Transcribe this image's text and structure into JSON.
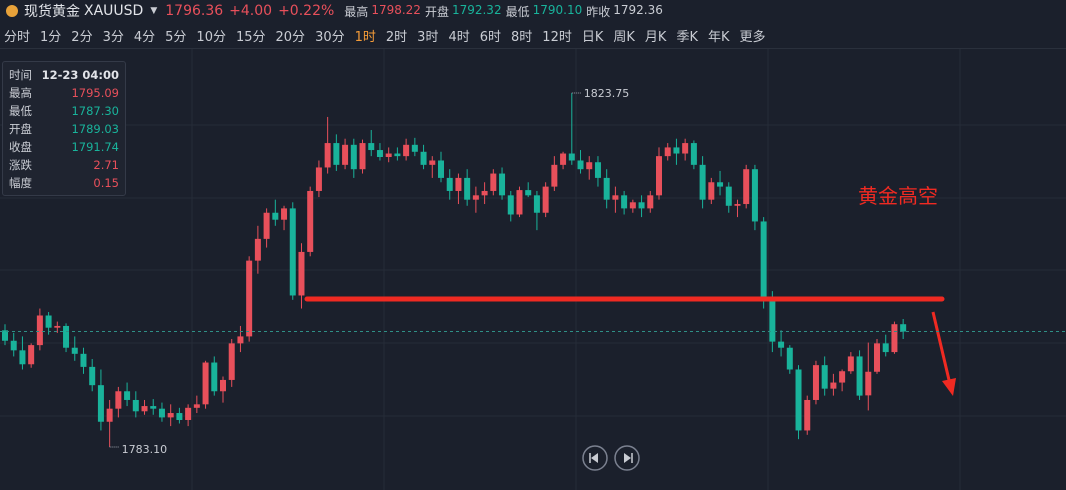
{
  "header": {
    "name": "现货黄金",
    "symbol": "XAUUSD",
    "price": 1796.36,
    "change": "+4.00",
    "change_pct": "+0.22%",
    "stats": [
      {
        "label": "最高",
        "value": "1798.22"
      },
      {
        "label": "开盘",
        "value": "1792.32"
      },
      {
        "label": "最低",
        "value": "1790.10"
      },
      {
        "label": "昨收",
        "value": "1792.36"
      }
    ]
  },
  "timeframes": [
    "分时",
    "1分",
    "2分",
    "3分",
    "4分",
    "5分",
    "10分",
    "15分",
    "20分",
    "30分",
    "1时",
    "2时",
    "3时",
    "4时",
    "6时",
    "8时",
    "12时",
    "日K",
    "周K",
    "月K",
    "季K",
    "年K",
    "更多"
  ],
  "active_timeframe": 10,
  "tooltip": [
    [
      "时间",
      "12-23 04:00"
    ],
    [
      "最高",
      "1795.09"
    ],
    [
      "最低",
      "1787.30"
    ],
    [
      "开盘",
      "1789.03"
    ],
    [
      "收盘",
      "1791.74"
    ],
    [
      "涨跌",
      "2.71"
    ],
    [
      "幅度",
      "0.15"
    ]
  ],
  "chart_data": {
    "type": "candlestick",
    "up_color": "#e8505b",
    "down_color": "#19b39b",
    "high_label": 1823.75,
    "low_label": {
      "value": 1783.1,
      "label": "1783.10"
    },
    "annotation": "黄金高空",
    "candles": [
      [
        1796.5,
        1797.2,
        1794.8,
        1795.3
      ],
      [
        1795.3,
        1796.2,
        1793.5,
        1794.2
      ],
      [
        1794.2,
        1795.8,
        1792.0,
        1792.6
      ],
      [
        1792.6,
        1795.0,
        1792.2,
        1794.8
      ],
      [
        1794.8,
        1799.0,
        1794.2,
        1798.2
      ],
      [
        1798.2,
        1798.6,
        1796.0,
        1796.8
      ],
      [
        1796.8,
        1797.5,
        1796.2,
        1797.0
      ],
      [
        1797.0,
        1797.3,
        1794.0,
        1794.5
      ],
      [
        1794.5,
        1795.8,
        1793.0,
        1793.8
      ],
      [
        1793.8,
        1794.5,
        1791.5,
        1792.3
      ],
      [
        1792.3,
        1793.2,
        1789.5,
        1790.2
      ],
      [
        1790.2,
        1792.0,
        1785.0,
        1786.0
      ],
      [
        1786.0,
        1788.5,
        1783.1,
        1787.5
      ],
      [
        1787.5,
        1790.0,
        1786.5,
        1789.5
      ],
      [
        1789.5,
        1790.5,
        1787.8,
        1788.5
      ],
      [
        1788.5,
        1789.5,
        1786.5,
        1787.2
      ],
      [
        1787.2,
        1788.5,
        1786.8,
        1787.8
      ],
      [
        1787.8,
        1788.6,
        1786.8,
        1787.5
      ],
      [
        1787.5,
        1788.2,
        1786.0,
        1786.5
      ],
      [
        1786.5,
        1788.0,
        1785.5,
        1787.0
      ],
      [
        1787.0,
        1787.6,
        1785.8,
        1786.2
      ],
      [
        1786.2,
        1788.0,
        1785.5,
        1787.6
      ],
      [
        1787.6,
        1789.0,
        1787.0,
        1788.0
      ],
      [
        1788.0,
        1793.0,
        1787.5,
        1792.8
      ],
      [
        1792.8,
        1793.5,
        1789.0,
        1789.5
      ],
      [
        1789.5,
        1791.2,
        1788.2,
        1790.8
      ],
      [
        1790.8,
        1795.5,
        1790.0,
        1795.0
      ],
      [
        1795.0,
        1797.0,
        1794.0,
        1795.8
      ],
      [
        1795.8,
        1805.0,
        1795.2,
        1804.5
      ],
      [
        1804.5,
        1808.5,
        1803.0,
        1807.0
      ],
      [
        1807.0,
        1810.5,
        1806.0,
        1810.0
      ],
      [
        1810.0,
        1811.5,
        1808.5,
        1809.2
      ],
      [
        1809.2,
        1810.8,
        1808.0,
        1810.5
      ],
      [
        1810.5,
        1811.2,
        1800.0,
        1800.5
      ],
      [
        1800.5,
        1806.5,
        1799.0,
        1805.5
      ],
      [
        1805.5,
        1813.0,
        1805.0,
        1812.5
      ],
      [
        1812.5,
        1816.0,
        1811.8,
        1815.2
      ],
      [
        1815.2,
        1821.0,
        1814.5,
        1818.0
      ],
      [
        1818.0,
        1819.0,
        1814.8,
        1815.5
      ],
      [
        1815.5,
        1818.5,
        1815.0,
        1817.8
      ],
      [
        1817.8,
        1818.5,
        1814.0,
        1815.0
      ],
      [
        1815.0,
        1818.4,
        1814.5,
        1818.0
      ],
      [
        1818.0,
        1819.5,
        1816.5,
        1817.2
      ],
      [
        1817.2,
        1818.0,
        1816.0,
        1816.4
      ],
      [
        1816.4,
        1817.5,
        1815.8,
        1816.8
      ],
      [
        1816.8,
        1817.5,
        1816.0,
        1816.5
      ],
      [
        1816.5,
        1818.5,
        1816.0,
        1817.8
      ],
      [
        1817.8,
        1818.6,
        1816.5,
        1817.0
      ],
      [
        1817.0,
        1817.8,
        1815.0,
        1815.5
      ],
      [
        1815.5,
        1816.5,
        1814.0,
        1816.0
      ],
      [
        1816.0,
        1817.0,
        1813.5,
        1814.0
      ],
      [
        1814.0,
        1815.0,
        1811.5,
        1812.5
      ],
      [
        1812.5,
        1814.5,
        1811.0,
        1814.0
      ],
      [
        1814.0,
        1815.0,
        1810.8,
        1811.5
      ],
      [
        1811.5,
        1813.0,
        1810.0,
        1812.0
      ],
      [
        1812.0,
        1813.5,
        1811.0,
        1812.5
      ],
      [
        1812.5,
        1815.0,
        1812.0,
        1814.5
      ],
      [
        1814.5,
        1815.2,
        1811.5,
        1812.0
      ],
      [
        1812.0,
        1812.5,
        1809.0,
        1809.8
      ],
      [
        1809.8,
        1813.0,
        1809.5,
        1812.6
      ],
      [
        1812.6,
        1813.5,
        1811.8,
        1812.0
      ],
      [
        1812.0,
        1812.5,
        1808.0,
        1810.0
      ],
      [
        1810.0,
        1813.5,
        1809.5,
        1813.0
      ],
      [
        1813.0,
        1816.5,
        1812.5,
        1815.5
      ],
      [
        1815.5,
        1817.0,
        1815.0,
        1816.8
      ],
      [
        1816.8,
        1823.75,
        1815.5,
        1816.0
      ],
      [
        1816.0,
        1817.2,
        1814.5,
        1815.0
      ],
      [
        1815.0,
        1816.5,
        1813.8,
        1815.8
      ],
      [
        1815.8,
        1816.5,
        1813.0,
        1814.0
      ],
      [
        1814.0,
        1815.0,
        1810.5,
        1811.5
      ],
      [
        1811.5,
        1813.0,
        1810.0,
        1812.0
      ],
      [
        1812.0,
        1812.5,
        1809.8,
        1810.5
      ],
      [
        1810.5,
        1811.5,
        1810.0,
        1811.2
      ],
      [
        1811.2,
        1812.0,
        1809.5,
        1810.5
      ],
      [
        1810.5,
        1812.5,
        1810.0,
        1812.0
      ],
      [
        1812.0,
        1817.5,
        1811.5,
        1816.5
      ],
      [
        1816.5,
        1818.0,
        1816.0,
        1817.5
      ],
      [
        1817.5,
        1818.5,
        1815.5,
        1816.8
      ],
      [
        1816.8,
        1818.5,
        1816.0,
        1818.0
      ],
      [
        1818.0,
        1818.3,
        1815.0,
        1815.5
      ],
      [
        1815.5,
        1816.5,
        1810.5,
        1811.5
      ],
      [
        1811.5,
        1814.0,
        1811.0,
        1813.5
      ],
      [
        1813.5,
        1814.8,
        1812.0,
        1813.0
      ],
      [
        1813.0,
        1813.5,
        1810.0,
        1810.8
      ],
      [
        1810.8,
        1811.5,
        1809.5,
        1811.0
      ],
      [
        1811.0,
        1815.5,
        1810.5,
        1815.0
      ],
      [
        1815.0,
        1815.5,
        1808.0,
        1809.0
      ],
      [
        1809.0,
        1809.5,
        1799.0,
        1800.0
      ],
      [
        1800.0,
        1801.0,
        1794.0,
        1795.2
      ],
      [
        1795.2,
        1796.5,
        1793.5,
        1794.5
      ],
      [
        1794.5,
        1794.8,
        1791.5,
        1792.0
      ],
      [
        1792.0,
        1792.5,
        1784.0,
        1785.0
      ],
      [
        1785.0,
        1789.0,
        1784.5,
        1788.5
      ],
      [
        1788.5,
        1793.0,
        1788.0,
        1792.5
      ],
      [
        1792.5,
        1793.5,
        1789.0,
        1789.8
      ],
      [
        1789.8,
        1791.5,
        1789.0,
        1790.5
      ],
      [
        1790.5,
        1792.0,
        1789.5,
        1791.8
      ],
      [
        1791.8,
        1794.0,
        1791.5,
        1793.5
      ],
      [
        1793.5,
        1794.2,
        1788.5,
        1789.0
      ],
      [
        1789.03,
        1795.09,
        1787.3,
        1791.74
      ],
      [
        1791.74,
        1795.5,
        1791.5,
        1795.0
      ],
      [
        1795.0,
        1796.0,
        1793.5,
        1794.0
      ],
      [
        1794.0,
        1797.5,
        1793.8,
        1797.2
      ],
      [
        1797.2,
        1797.8,
        1795.5,
        1796.36
      ]
    ]
  }
}
